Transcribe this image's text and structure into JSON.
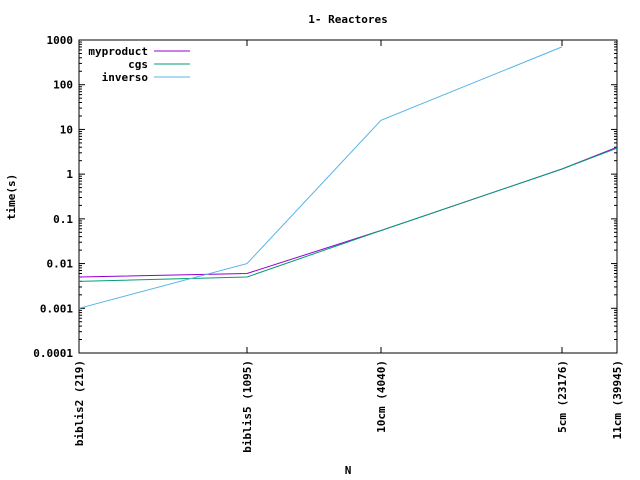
{
  "chart_data": {
    "type": "line",
    "title": "1- Reactores",
    "xlabel": "N",
    "ylabel": "time(s)",
    "y_scale": "log",
    "ylim": [
      0.0001,
      1000
    ],
    "y_ticks": [
      "0.0001",
      "0.001",
      "0.01",
      "0.1",
      "1",
      "10",
      "100",
      "1000"
    ],
    "x": [
      219,
      1095,
      4040,
      23176,
      39945
    ],
    "x_tick_labels": [
      "biblis2 (219)",
      "biblis5 (1095)",
      "10cm (4040)",
      "5cm (23176)",
      "11cm (39945)"
    ],
    "legend_position": "top-left",
    "series": [
      {
        "name": "myproduct",
        "color": "#9400d3",
        "values": [
          0.005,
          0.006,
          0.055,
          1.3,
          4.0
        ]
      },
      {
        "name": "cgs",
        "color": "#009e73",
        "values": [
          0.004,
          0.005,
          0.055,
          1.3,
          3.8
        ]
      },
      {
        "name": "inverso",
        "color": "#56b4e9",
        "values": [
          0.001,
          0.01,
          16,
          700,
          null
        ]
      }
    ]
  }
}
